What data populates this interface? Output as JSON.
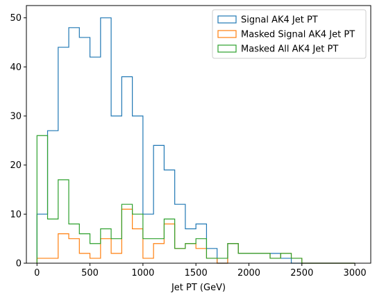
{
  "chart_data": {
    "type": "histogram-step",
    "title": "",
    "xlabel": "Jet PT (GeV)",
    "ylabel": "",
    "xlim": [
      -100,
      3150
    ],
    "ylim": [
      0,
      52.5
    ],
    "xticks": [
      0,
      500,
      1000,
      1500,
      2000,
      2500,
      3000
    ],
    "yticks": [
      0,
      10,
      20,
      30,
      40,
      50
    ],
    "bin_edges": [
      0,
      100,
      200,
      300,
      400,
      500,
      600,
      700,
      800,
      900,
      1000,
      1100,
      1200,
      1300,
      1400,
      1500,
      1600,
      1700,
      1800,
      1900,
      2000,
      2100,
      2200,
      2300,
      2400,
      2500,
      2600,
      2700,
      2800,
      2900,
      3000
    ],
    "grid": false,
    "legend_position": "upper right",
    "series": [
      {
        "name": "Signal AK4 Jet PT",
        "color": "#1f77b4",
        "values": [
          10,
          27,
          44,
          48,
          46,
          42,
          50,
          30,
          38,
          30,
          10,
          24,
          19,
          12,
          7,
          8,
          3,
          0,
          4,
          2,
          2,
          2,
          2,
          1,
          0,
          0,
          0,
          0,
          0,
          0
        ]
      },
      {
        "name": "Masked Signal AK4 Jet PT",
        "color": "#ff7f0e",
        "values": [
          1,
          1,
          6,
          5,
          2,
          1,
          5,
          2,
          11,
          7,
          1,
          4,
          8,
          3,
          4,
          3,
          1,
          0,
          4,
          2,
          2,
          2,
          1,
          2,
          1,
          0,
          0,
          0,
          0,
          0
        ]
      },
      {
        "name": "Masked All AK4 Jet PT",
        "color": "#2ca02c",
        "values": [
          26,
          9,
          17,
          8,
          6,
          4,
          7,
          5,
          12,
          10,
          5,
          5,
          9,
          3,
          4,
          5,
          1,
          1,
          4,
          2,
          2,
          2,
          1,
          2,
          1,
          0,
          0,
          0,
          0,
          0
        ]
      }
    ]
  }
}
